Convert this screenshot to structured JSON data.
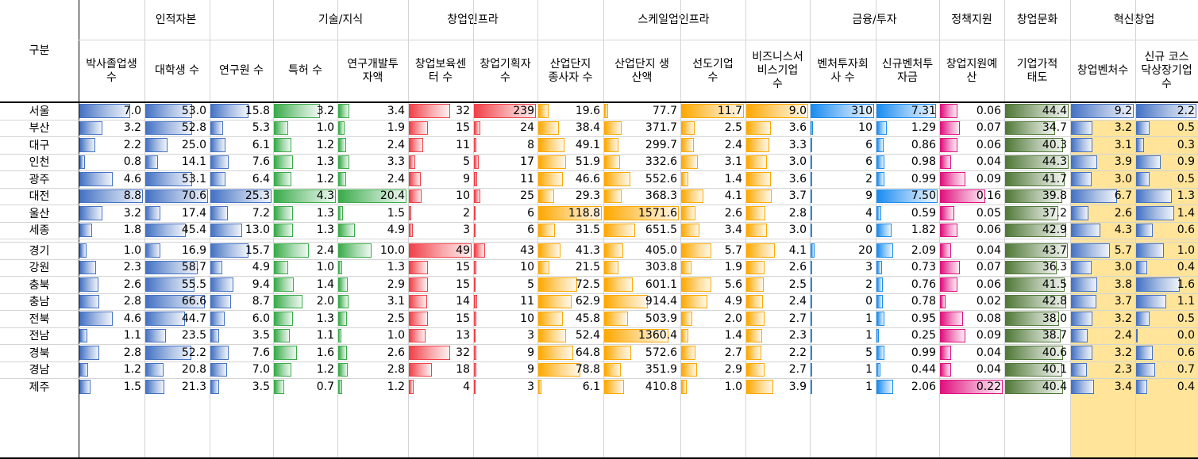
{
  "corner_label": "구분",
  "groups": [
    {
      "label": "인적자본",
      "span": 3
    },
    {
      "label": "기술/지식",
      "span": 2
    },
    {
      "label": "창업인프라",
      "span": 2
    },
    {
      "label": "스케일업인프라",
      "span": 4
    },
    {
      "label": "금융/투자",
      "span": 2
    },
    {
      "label": "정책지원",
      "span": 1
    },
    {
      "label": "창업문화",
      "span": 1
    },
    {
      "label": "혁신창업",
      "span": 2
    }
  ],
  "columns": [
    {
      "label": "박사졸업생\n수",
      "color": "#4472c4",
      "max": 8.8,
      "decimals": 1
    },
    {
      "label": "대학생 수",
      "color": "#4472c4",
      "max": 70.6,
      "decimals": 1
    },
    {
      "label": "연구원 수",
      "color": "#4472c4",
      "max": 25.3,
      "decimals": 1
    },
    {
      "label": "특허 수",
      "color": "#3aab4a",
      "max": 4.3,
      "decimals": 1
    },
    {
      "label": "연구개발투\n자액",
      "color": "#3aab4a",
      "max": 20.4,
      "decimals": 1
    },
    {
      "label": "창업보육센\n터 수",
      "color": "#f04048",
      "max": 49,
      "decimals": 0
    },
    {
      "label": "창업기획자\n수",
      "color": "#f04048",
      "max": 239,
      "decimals": 0
    },
    {
      "label": "산업단지\n종사자 수",
      "color": "#ffa800",
      "max": 118.8,
      "decimals": 1
    },
    {
      "label": "산업단지 생\n산액",
      "color": "#ffa800",
      "max": 1571.6,
      "decimals": 1
    },
    {
      "label": "선도기업\n수",
      "color": "#ffa800",
      "max": 11.7,
      "decimals": 1
    },
    {
      "label": "비즈니스서\n비스기업\n수",
      "color": "#ffa800",
      "max": 9.0,
      "decimals": 1
    },
    {
      "label": "벤처투자회\n사 수",
      "color": "#1a8cf0",
      "max": 310,
      "decimals": 0
    },
    {
      "label": "신규벤처투\n자금",
      "color": "#1a8cf0",
      "max": 7.5,
      "decimals": 2
    },
    {
      "label": "창업지원예\n산",
      "color": "#e0107e",
      "max": 0.22,
      "decimals": 2
    },
    {
      "label": "기업가적\n태도",
      "color": "#507838",
      "max": 44.4,
      "decimals": 1
    },
    {
      "label": "창업벤처수",
      "color": "#4472c4",
      "max": 9.2,
      "decimals": 1
    },
    {
      "label": "신규 코스\n닥상장기업\n수",
      "color": "#4472c4",
      "max": 2.2,
      "decimals": 1
    }
  ],
  "rows": [
    {
      "region": "서울",
      "values": [
        7.0,
        53.0,
        15.8,
        3.2,
        3.4,
        32,
        239,
        19.6,
        77.7,
        11.7,
        9.0,
        310,
        7.31,
        0.06,
        44.4,
        9.2,
        2.2
      ]
    },
    {
      "region": "부산",
      "values": [
        3.2,
        52.8,
        5.3,
        1.0,
        1.9,
        15,
        24,
        38.4,
        371.7,
        2.5,
        3.6,
        10,
        1.29,
        0.07,
        34.7,
        3.2,
        0.5
      ]
    },
    {
      "region": "대구",
      "values": [
        2.2,
        25.0,
        6.1,
        1.2,
        2.4,
        11,
        8,
        49.1,
        299.7,
        2.4,
        3.3,
        6,
        0.86,
        0.06,
        40.3,
        3.1,
        0.3
      ]
    },
    {
      "region": "인천",
      "values": [
        0.8,
        14.1,
        7.6,
        1.3,
        3.3,
        5,
        17,
        51.9,
        332.6,
        3.1,
        3.0,
        6,
        0.98,
        0.04,
        44.3,
        3.9,
        0.9
      ]
    },
    {
      "region": "광주",
      "values": [
        4.6,
        53.1,
        6.4,
        1.2,
        2.4,
        9,
        11,
        46.6,
        552.6,
        1.4,
        3.6,
        2,
        0.99,
        0.09,
        41.7,
        3.0,
        0.5
      ]
    },
    {
      "region": "대전",
      "values": [
        8.8,
        70.6,
        25.3,
        4.3,
        20.4,
        10,
        25,
        29.3,
        368.3,
        4.1,
        3.7,
        9,
        7.5,
        0.16,
        39.8,
        6.7,
        1.3
      ]
    },
    {
      "region": "울산",
      "values": [
        3.2,
        17.4,
        7.2,
        1.3,
        1.5,
        2,
        6,
        118.8,
        1571.6,
        2.6,
        2.8,
        4,
        0.59,
        0.05,
        37.2,
        2.6,
        1.4
      ]
    },
    {
      "region": "세종",
      "values": [
        1.8,
        45.4,
        13.0,
        1.3,
        4.9,
        3,
        6,
        31.5,
        651.5,
        3.4,
        3.0,
        0,
        1.82,
        0.06,
        42.9,
        4.3,
        0.6
      ]
    },
    {
      "region": "경기",
      "values": [
        1.0,
        16.9,
        15.7,
        2.4,
        10.0,
        49,
        43,
        41.3,
        405.0,
        5.7,
        4.1,
        20,
        2.09,
        0.04,
        43.7,
        5.7,
        1.0
      ]
    },
    {
      "region": "강원",
      "values": [
        2.3,
        58.7,
        4.9,
        1.0,
        1.3,
        15,
        10,
        21.5,
        303.8,
        1.9,
        2.6,
        3,
        0.73,
        0.07,
        36.3,
        3.0,
        0.4
      ]
    },
    {
      "region": "충북",
      "values": [
        2.6,
        55.5,
        9.4,
        1.4,
        2.9,
        15,
        5,
        72.5,
        601.1,
        5.6,
        2.5,
        2,
        0.76,
        0.06,
        41.5,
        3.8,
        1.6
      ]
    },
    {
      "region": "충남",
      "values": [
        2.8,
        66.6,
        8.7,
        2.0,
        3.1,
        14,
        11,
        62.9,
        914.4,
        4.9,
        2.4,
        0,
        0.78,
        0.02,
        42.8,
        3.7,
        1.1
      ]
    },
    {
      "region": "전북",
      "values": [
        4.6,
        44.7,
        6.0,
        1.3,
        2.5,
        15,
        10,
        45.8,
        503.9,
        2.0,
        2.7,
        1,
        0.95,
        0.08,
        38.0,
        3.2,
        0.5
      ]
    },
    {
      "region": "전남",
      "values": [
        1.1,
        23.5,
        3.5,
        1.1,
        1.0,
        13,
        3,
        52.4,
        1360.4,
        1.4,
        2.3,
        1,
        0.25,
        0.09,
        38.7,
        2.4,
        0.0
      ]
    },
    {
      "region": "경북",
      "values": [
        2.8,
        52.2,
        7.6,
        1.6,
        2.6,
        32,
        9,
        64.8,
        572.6,
        2.7,
        2.2,
        5,
        0.99,
        0.04,
        40.6,
        3.2,
        0.6
      ]
    },
    {
      "region": "경남",
      "values": [
        1.2,
        20.8,
        7.0,
        1.2,
        2.8,
        18,
        9,
        78.8,
        351.9,
        2.9,
        2.7,
        1,
        0.44,
        0.04,
        40.1,
        2.3,
        0.7
      ]
    },
    {
      "region": "제주",
      "values": [
        1.5,
        21.3,
        3.5,
        0.7,
        1.2,
        4,
        3,
        6.1,
        410.8,
        1.0,
        3.9,
        1,
        2.06,
        0.22,
        40.4,
        3.4,
        0.4
      ]
    }
  ]
}
